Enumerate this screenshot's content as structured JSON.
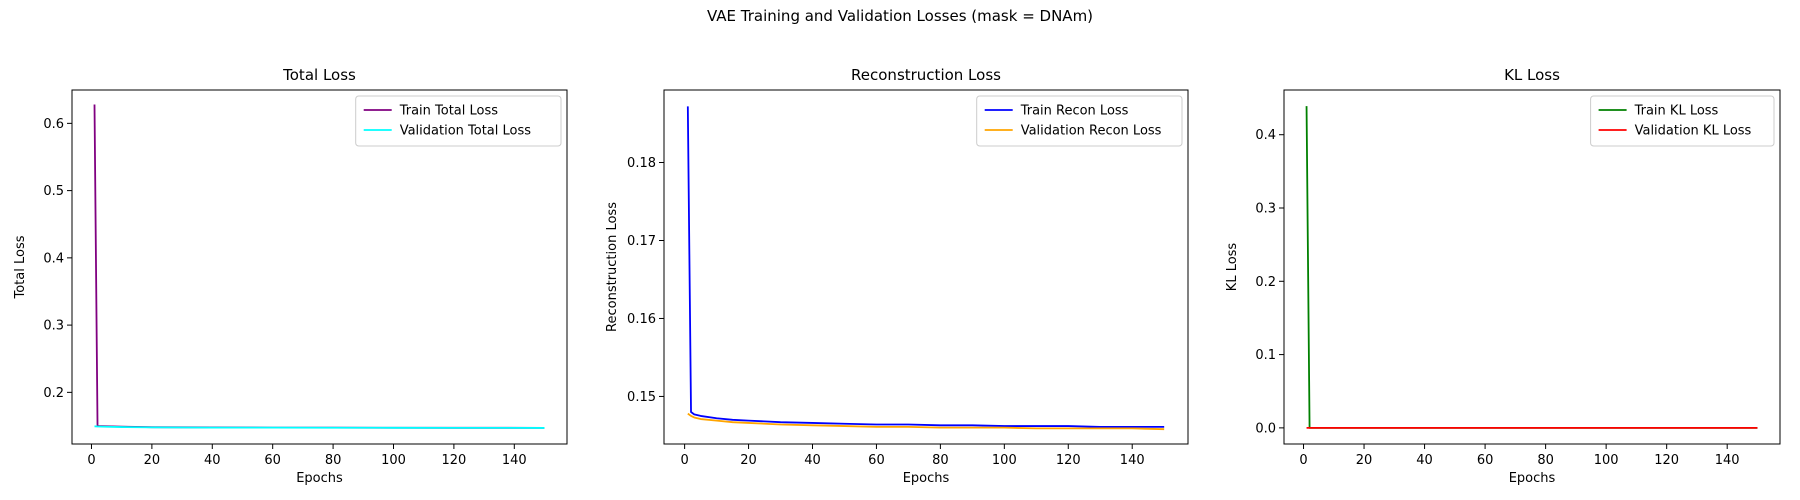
{
  "figure": {
    "suptitle": "VAE Training and Validation Losses (mask = DNAm)"
  },
  "chart_data": [
    {
      "type": "line",
      "title": "Total Loss",
      "xlabel": "Epochs",
      "ylabel": "Total Loss",
      "xlim": [
        -6.45,
        157.45
      ],
      "ylim": [
        0.1232,
        0.6496
      ],
      "xticks": [
        0,
        20,
        40,
        60,
        80,
        100,
        120,
        140
      ],
      "yticks": [
        0.2,
        0.3,
        0.4,
        0.5,
        0.6
      ],
      "ytick_labels": [
        "0.2",
        "0.3",
        "0.4",
        "0.5",
        "0.6"
      ],
      "legend_position": "top-right",
      "series": [
        {
          "name": "Train Total Loss",
          "color": "#800080",
          "points": [
            [
              1,
              0.628
            ],
            [
              2,
              0.15
            ],
            [
              5,
              0.1495
            ],
            [
              10,
              0.149
            ],
            [
              20,
              0.1482
            ],
            [
              40,
              0.1478
            ],
            [
              60,
              0.1476
            ],
            [
              80,
              0.1475
            ],
            [
              100,
              0.1474
            ],
            [
              120,
              0.1473
            ],
            [
              150,
              0.1472
            ]
          ]
        },
        {
          "name": "Validation Total Loss",
          "color": "#00ffff",
          "points": [
            [
              1,
              0.1495
            ],
            [
              2,
              0.1492
            ],
            [
              5,
              0.1488
            ],
            [
              10,
              0.1484
            ],
            [
              20,
              0.1479
            ],
            [
              40,
              0.1476
            ],
            [
              60,
              0.1475
            ],
            [
              80,
              0.1474
            ],
            [
              100,
              0.1473
            ],
            [
              120,
              0.1472
            ],
            [
              150,
              0.1471
            ]
          ]
        }
      ]
    },
    {
      "type": "line",
      "title": "Reconstruction Loss",
      "xlabel": "Epochs",
      "ylabel": "Reconstruction Loss",
      "xlim": [
        -6.45,
        157.45
      ],
      "ylim": [
        0.1439,
        0.1893
      ],
      "xticks": [
        0,
        20,
        40,
        60,
        80,
        100,
        120,
        140
      ],
      "yticks": [
        0.15,
        0.16,
        0.17,
        0.18
      ],
      "ytick_labels": [
        "0.15",
        "0.16",
        "0.17",
        "0.18"
      ],
      "legend_position": "top-right",
      "series": [
        {
          "name": "Train Recon Loss",
          "color": "#0000ff",
          "points": [
            [
              1,
              0.1872
            ],
            [
              2,
              0.148
            ],
            [
              3,
              0.1477
            ],
            [
              5,
              0.1475
            ],
            [
              10,
              0.1472
            ],
            [
              15,
              0.147
            ],
            [
              20,
              0.1469
            ],
            [
              30,
              0.1467
            ],
            [
              40,
              0.1466
            ],
            [
              50,
              0.1465
            ],
            [
              60,
              0.1464
            ],
            [
              70,
              0.1464
            ],
            [
              80,
              0.1463
            ],
            [
              90,
              0.1463
            ],
            [
              100,
              0.1462
            ],
            [
              110,
              0.1462
            ],
            [
              120,
              0.1462
            ],
            [
              130,
              0.1461
            ],
            [
              140,
              0.1461
            ],
            [
              150,
              0.1461
            ]
          ]
        },
        {
          "name": "Validation Recon Loss",
          "color": "#ffa500",
          "points": [
            [
              1,
              0.1478
            ],
            [
              2,
              0.1475
            ],
            [
              3,
              0.1473
            ],
            [
              5,
              0.1471
            ],
            [
              10,
              0.1469
            ],
            [
              15,
              0.1467
            ],
            [
              20,
              0.1466
            ],
            [
              30,
              0.1464
            ],
            [
              40,
              0.1463
            ],
            [
              50,
              0.1462
            ],
            [
              60,
              0.1461
            ],
            [
              70,
              0.1461
            ],
            [
              80,
              0.146
            ],
            [
              90,
              0.146
            ],
            [
              100,
              0.146
            ],
            [
              110,
              0.1459
            ],
            [
              120,
              0.1459
            ],
            [
              130,
              0.1459
            ],
            [
              140,
              0.1459
            ],
            [
              150,
              0.1458
            ]
          ]
        }
      ]
    },
    {
      "type": "line",
      "title": "KL Loss",
      "xlabel": "Epochs",
      "ylabel": "KL Loss",
      "xlim": [
        -6.45,
        157.45
      ],
      "ylim": [
        -0.022,
        0.461
      ],
      "xticks": [
        0,
        20,
        40,
        60,
        80,
        100,
        120,
        140
      ],
      "yticks": [
        0.0,
        0.1,
        0.2,
        0.3,
        0.4
      ],
      "ytick_labels": [
        "0.0",
        "0.1",
        "0.2",
        "0.3",
        "0.4"
      ],
      "legend_position": "top-right",
      "series": [
        {
          "name": "Train KL Loss",
          "color": "#008000",
          "points": [
            [
              1,
              0.439
            ],
            [
              2,
              0.0
            ],
            [
              150,
              0.0
            ]
          ]
        },
        {
          "name": "Validation KL Loss",
          "color": "#ff0000",
          "points": [
            [
              1,
              0.0
            ],
            [
              150,
              0.0
            ]
          ]
        }
      ]
    }
  ]
}
